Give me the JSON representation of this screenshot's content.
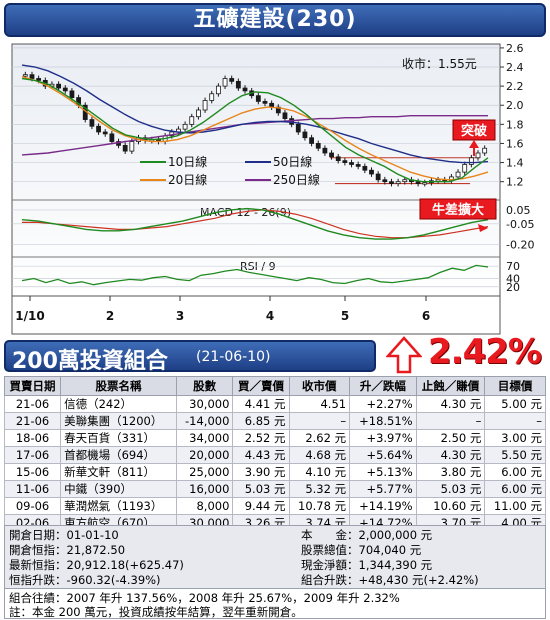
{
  "title": "五礦建設(230)",
  "portfolio": {
    "title": "200萬投資組合",
    "date": "(21-06-10)",
    "gain_pct": "2.42%"
  },
  "table": {
    "headers": [
      "買賣日期",
      "股票名稱",
      "股數",
      "買／賣價",
      "收市價",
      "升／跌幅",
      "止蝕／賺價",
      "目標價"
    ],
    "rows": [
      [
        "21-06",
        "信德（242）",
        "30,000",
        "4.41 元",
        "4.51",
        "+2.27%",
        "4.30 元",
        "5.00 元"
      ],
      [
        "21-06",
        "美聯集團（1200）",
        "-14,000",
        "6.85 元",
        "–",
        "+18.51%",
        "–",
        "–"
      ],
      [
        "18-06",
        "春天百貨（331）",
        "34,000",
        "2.52 元",
        "2.62 元",
        "+3.97%",
        "2.50 元",
        "3.00 元"
      ],
      [
        "17-06",
        "首都機場（694）",
        "20,000",
        "4.43 元",
        "4.68 元",
        "+5.64%",
        "4.30 元",
        "5.50 元"
      ],
      [
        "15-06",
        "新華文軒（811）",
        "25,000",
        "3.90 元",
        "4.10 元",
        "+5.13%",
        "3.80 元",
        "6.00 元"
      ],
      [
        "11-06",
        "中鐵（390）",
        "16,000",
        "5.03 元",
        "5.32 元",
        "+5.77%",
        "5.03 元",
        "6.00 元"
      ],
      [
        "09-06",
        "華潤燃氣（1193）",
        "8,000",
        "9.44 元",
        "10.78 元",
        "+14.19%",
        "10.60 元",
        "11.00 元"
      ],
      [
        "02-06",
        "東方航空（670）",
        "30,000",
        "3.26 元",
        "3.74 元",
        "+14.72%",
        "3.70 元",
        "4.00 元"
      ]
    ]
  },
  "summary": {
    "open_date": "開倉日期：01-01-10",
    "open_index": "開倉恒指：21,872.50",
    "latest_index": "最新恒指：20,912.18(+625.47)",
    "index_change": "恒指升跌：-960.32(-4.39%)",
    "capital": "本　　金：2,000,000 元",
    "stock_value": "股票總值：704,040 元",
    "cash": "現金淨額：1,344,390 元",
    "portfolio_change": "組合升跌：+48,430 元(+2.42%)",
    "history": "組合往績：2007 年升 137.56%，2008 年升 25.67%，2009 年升 2.32%",
    "note": "註：本金 200 萬元，投資成績按年結算，翌年重新開倉。"
  },
  "chart_data": {
    "type": "line",
    "close_label": "收市：1.55元",
    "callout_breakout": "突破",
    "callout_divergence": "牛差擴大",
    "x_ticks": [
      "1/10",
      "2",
      "3",
      "4",
      "5",
      "6"
    ],
    "price_axis": {
      "ticks": [
        "2.6",
        "2.4",
        "2.2",
        "2.0",
        "1.8",
        "1.6",
        "1.4",
        "1.2"
      ],
      "ylim": [
        1.05,
        2.62
      ]
    },
    "legend": [
      "10日線",
      "20日線",
      "50日線",
      "250日線"
    ],
    "colors": {
      "ma10": "#1f8a1f",
      "ma20": "#e8861c",
      "ma50": "#1f2f8a",
      "ma250": "#7a2a8a",
      "candle": "#1a1a1a",
      "macd": "#1f8a1f",
      "signal": "#cc3322",
      "rsi": "#1f8a1f"
    },
    "price_series": [
      2.32,
      2.28,
      2.26,
      2.2,
      2.22,
      2.18,
      2.15,
      2.08,
      2.0,
      1.85,
      1.78,
      1.72,
      1.7,
      1.62,
      1.58,
      1.52,
      1.62,
      1.66,
      1.63,
      1.64,
      1.62,
      1.68,
      1.72,
      1.75,
      1.8,
      1.88,
      1.95,
      2.05,
      2.12,
      2.2,
      2.28,
      2.25,
      2.18,
      2.15,
      2.1,
      2.04,
      2.02,
      1.98,
      1.92,
      1.86,
      1.8,
      1.72,
      1.66,
      1.6,
      1.55,
      1.5,
      1.46,
      1.42,
      1.4,
      1.38,
      1.36,
      1.32,
      1.28,
      1.22,
      1.2,
      1.18,
      1.2,
      1.22,
      1.2,
      1.18,
      1.19,
      1.21,
      1.22,
      1.21,
      1.25,
      1.3,
      1.38,
      1.45,
      1.5,
      1.55
    ],
    "ma10": [
      2.28,
      2.26,
      2.22,
      2.14,
      2.05,
      1.96,
      1.86,
      1.76,
      1.69,
      1.66,
      1.64,
      1.65,
      1.68,
      1.74,
      1.82,
      1.92,
      2.02,
      2.1,
      2.14,
      2.13,
      2.08,
      2.0,
      1.9,
      1.78,
      1.67,
      1.56,
      1.48,
      1.42,
      1.36,
      1.28,
      1.22,
      1.2,
      1.2,
      1.2,
      1.24,
      1.35,
      1.45
    ],
    "ma20": [
      2.3,
      2.26,
      2.2,
      2.12,
      2.03,
      1.93,
      1.83,
      1.74,
      1.68,
      1.64,
      1.62,
      1.62,
      1.64,
      1.68,
      1.74,
      1.8,
      1.86,
      1.92,
      1.96,
      1.98,
      1.97,
      1.94,
      1.88,
      1.8,
      1.72,
      1.63,
      1.55,
      1.48,
      1.42,
      1.36,
      1.3,
      1.26,
      1.23,
      1.22,
      1.23,
      1.26,
      1.3
    ],
    "ma50": [
      2.42,
      2.4,
      2.36,
      2.3,
      2.23,
      2.15,
      2.06,
      1.98,
      1.9,
      1.83,
      1.78,
      1.74,
      1.72,
      1.71,
      1.72,
      1.74,
      1.77,
      1.8,
      1.82,
      1.83,
      1.83,
      1.82,
      1.8,
      1.77,
      1.73,
      1.69,
      1.65,
      1.6,
      1.56,
      1.52,
      1.48,
      1.45,
      1.43,
      1.41,
      1.4,
      1.4,
      1.41
    ],
    "ma250": [
      1.48,
      1.49,
      1.5,
      1.52,
      1.54,
      1.56,
      1.58,
      1.6,
      1.62,
      1.64,
      1.66,
      1.68,
      1.7,
      1.72,
      1.74,
      1.76,
      1.78,
      1.8,
      1.81,
      1.82,
      1.83,
      1.84,
      1.85,
      1.86,
      1.86,
      1.87,
      1.87,
      1.88,
      1.88,
      1.88,
      1.89,
      1.89,
      1.89,
      1.89,
      1.89,
      1.89,
      1.89
    ],
    "support_level": 1.18,
    "macd_label": "MACD 12 - 26(9)",
    "macd_axis": {
      "ticks": [
        "0.05",
        "-0.05",
        "-0.20"
      ],
      "ylim": [
        -0.26,
        0.1
      ]
    },
    "macd": [
      -0.02,
      -0.03,
      -0.05,
      -0.07,
      -0.09,
      -0.1,
      -0.1,
      -0.09,
      -0.07,
      -0.05,
      -0.03,
      -0.0,
      0.03,
      0.05,
      0.06,
      0.05,
      0.02,
      -0.02,
      -0.06,
      -0.1,
      -0.13,
      -0.15,
      -0.16,
      -0.16,
      -0.15,
      -0.13,
      -0.1,
      -0.07,
      -0.04,
      -0.02
    ],
    "signal": [
      -0.04,
      -0.04,
      -0.05,
      -0.06,
      -0.07,
      -0.08,
      -0.09,
      -0.09,
      -0.08,
      -0.07,
      -0.05,
      -0.03,
      -0.01,
      0.02,
      0.04,
      0.05,
      0.04,
      0.02,
      -0.01,
      -0.05,
      -0.09,
      -0.12,
      -0.14,
      -0.15,
      -0.15,
      -0.14,
      -0.13,
      -0.11,
      -0.09,
      -0.07
    ],
    "rsi_label": "RSI / 9",
    "rsi_axis": {
      "ticks": [
        "70",
        "40",
        "20"
      ],
      "ylim": [
        0,
        85
      ]
    },
    "rsi": [
      35,
      40,
      30,
      38,
      28,
      32,
      25,
      30,
      34,
      38,
      36,
      42,
      45,
      38,
      35,
      48,
      52,
      58,
      62,
      55,
      50,
      45,
      40,
      35,
      42,
      38,
      30,
      28,
      35,
      40,
      32,
      30,
      34,
      38,
      42,
      55,
      65,
      60,
      72,
      68
    ]
  }
}
